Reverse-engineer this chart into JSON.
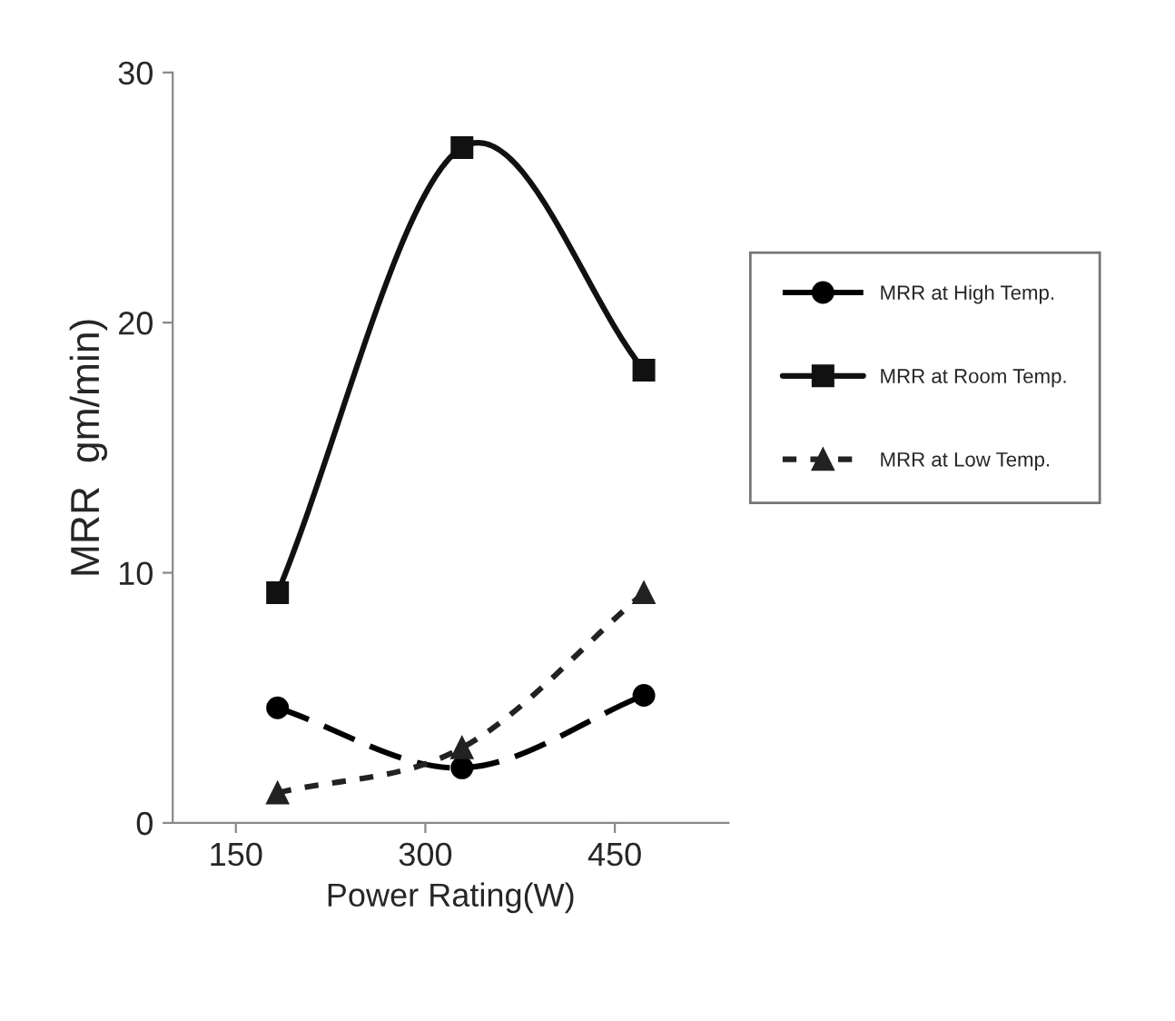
{
  "chart_data": {
    "type": "line",
    "xlabel": "Power Rating(W)",
    "ylabel": "MRR  gm/min)",
    "x": [
      183,
      329,
      473
    ],
    "series": [
      {
        "name": "MRR at High Temp.",
        "color": "#000000",
        "values": [
          4.6,
          2.2,
          5.1
        ],
        "marker": "circle",
        "line_style": "dashed"
      },
      {
        "name": "MRR at Room Temp.",
        "color": "#111111",
        "values": [
          9.2,
          27.0,
          18.1
        ],
        "marker": "square",
        "line_style": "solid"
      },
      {
        "name": "MRR at Low Temp.",
        "color": "#222222",
        "values": [
          1.2,
          3.0,
          9.2
        ],
        "marker": "triangle",
        "line_style": "dotted"
      }
    ],
    "xlim": [
      100,
      540
    ],
    "xticks": [
      150,
      300,
      450
    ],
    "ylim": [
      0,
      30
    ],
    "yticks": [
      0,
      10,
      20,
      30
    ],
    "grid": false,
    "legend": "right"
  }
}
